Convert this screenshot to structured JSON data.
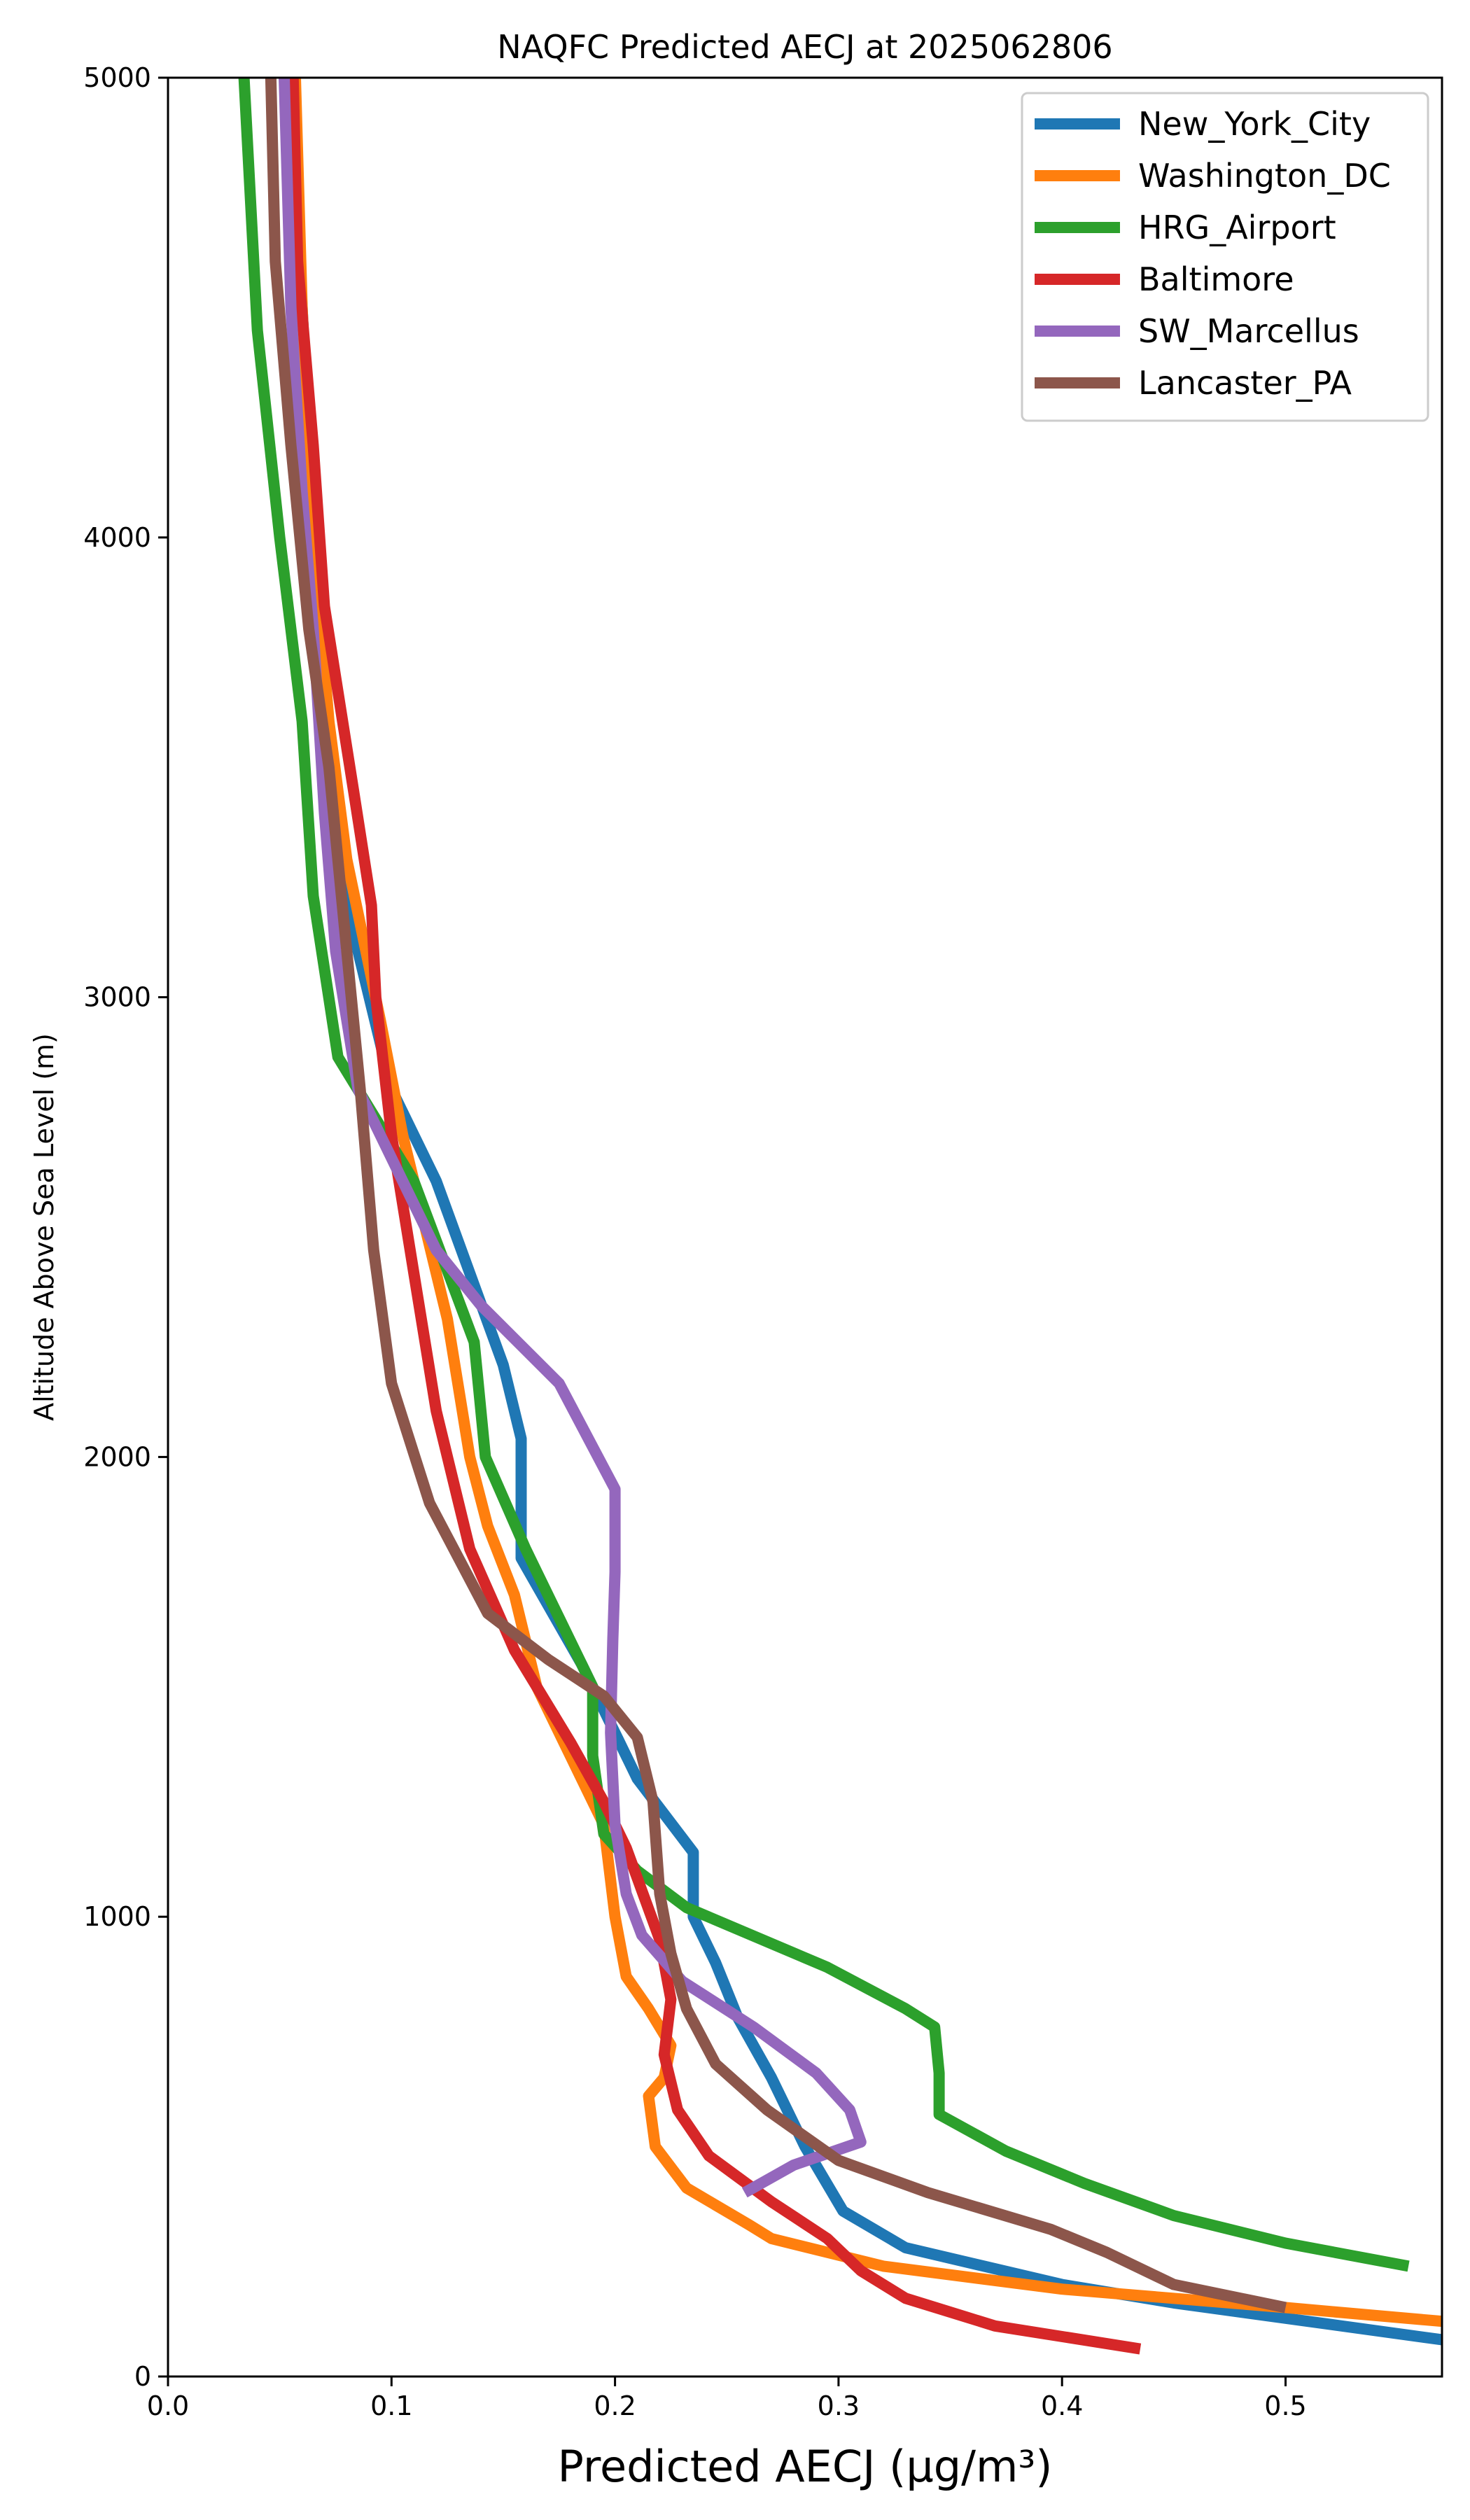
{
  "chart_data": {
    "type": "line",
    "title": "NAQFC Predicted AECJ at 2025062806",
    "xlabel": "Predicted AECJ (μg/m³)",
    "ylabel": "Altitude Above Sea Level (m)",
    "xlim": [
      0.0,
      0.57
    ],
    "ylim": [
      0,
      5000
    ],
    "xticks": [
      0.0,
      0.1,
      0.2,
      0.3,
      0.4,
      0.5
    ],
    "xtick_labels": [
      "0.0",
      "0.1",
      "0.2",
      "0.3",
      "0.4",
      "0.5"
    ],
    "yticks": [
      0,
      1000,
      2000,
      3000,
      4000,
      5000
    ],
    "ytick_labels": [
      "0",
      "1000",
      "2000",
      "3000",
      "4000",
      "5000"
    ],
    "grid": false,
    "legend_position": "top-right",
    "series": [
      {
        "name": "New_York_City",
        "color": "#1f77b4",
        "points": [
          [
            0.57,
            80
          ],
          [
            0.45,
            160
          ],
          [
            0.4,
            200
          ],
          [
            0.33,
            280
          ],
          [
            0.302,
            360
          ],
          [
            0.285,
            500
          ],
          [
            0.27,
            650
          ],
          [
            0.255,
            780
          ],
          [
            0.245,
            900
          ],
          [
            0.235,
            1000
          ],
          [
            0.235,
            1140
          ],
          [
            0.21,
            1300
          ],
          [
            0.185,
            1550
          ],
          [
            0.158,
            1780
          ],
          [
            0.158,
            2040
          ],
          [
            0.15,
            2200
          ],
          [
            0.135,
            2400
          ],
          [
            0.12,
            2600
          ],
          [
            0.1,
            2800
          ],
          [
            0.085,
            3100
          ],
          [
            0.072,
            3500
          ],
          [
            0.065,
            4000
          ],
          [
            0.06,
            4500
          ],
          [
            0.055,
            5000
          ]
        ]
      },
      {
        "name": "Washington_DC",
        "color": "#ff7f0e",
        "points": [
          [
            0.57,
            120
          ],
          [
            0.5,
            150
          ],
          [
            0.4,
            190
          ],
          [
            0.32,
            240
          ],
          [
            0.27,
            300
          ],
          [
            0.26,
            330
          ],
          [
            0.232,
            410
          ],
          [
            0.218,
            500
          ],
          [
            0.215,
            610
          ],
          [
            0.222,
            650
          ],
          [
            0.225,
            720
          ],
          [
            0.215,
            800
          ],
          [
            0.205,
            870
          ],
          [
            0.2,
            1000
          ],
          [
            0.195,
            1200
          ],
          [
            0.18,
            1350
          ],
          [
            0.165,
            1500
          ],
          [
            0.155,
            1700
          ],
          [
            0.143,
            1850
          ],
          [
            0.135,
            2000
          ],
          [
            0.125,
            2300
          ],
          [
            0.115,
            2500
          ],
          [
            0.105,
            2700
          ],
          [
            0.095,
            2950
          ],
          [
            0.08,
            3300
          ],
          [
            0.072,
            3600
          ],
          [
            0.065,
            4000
          ],
          [
            0.06,
            4500
          ],
          [
            0.057,
            5000
          ]
        ]
      },
      {
        "name": "HRG_Airport",
        "color": "#2ca02c",
        "points": [
          [
            0.555,
            240
          ],
          [
            0.5,
            290
          ],
          [
            0.45,
            350
          ],
          [
            0.41,
            420
          ],
          [
            0.375,
            490
          ],
          [
            0.345,
            570
          ],
          [
            0.345,
            660
          ],
          [
            0.343,
            760
          ],
          [
            0.33,
            800
          ],
          [
            0.295,
            890
          ],
          [
            0.232,
            1020
          ],
          [
            0.21,
            1100
          ],
          [
            0.195,
            1180
          ],
          [
            0.19,
            1350
          ],
          [
            0.19,
            1500
          ],
          [
            0.175,
            1650
          ],
          [
            0.16,
            1800
          ],
          [
            0.142,
            2000
          ],
          [
            0.137,
            2250
          ],
          [
            0.11,
            2600
          ],
          [
            0.076,
            2870
          ],
          [
            0.065,
            3220
          ],
          [
            0.06,
            3600
          ],
          [
            0.05,
            4000
          ],
          [
            0.04,
            4450
          ],
          [
            0.034,
            5000
          ]
        ]
      },
      {
        "name": "Baltimore",
        "color": "#d62728",
        "points": [
          [
            0.435,
            60
          ],
          [
            0.37,
            110
          ],
          [
            0.33,
            170
          ],
          [
            0.31,
            230
          ],
          [
            0.295,
            300
          ],
          [
            0.27,
            380
          ],
          [
            0.242,
            480
          ],
          [
            0.228,
            580
          ],
          [
            0.222,
            700
          ],
          [
            0.225,
            820
          ],
          [
            0.22,
            950
          ],
          [
            0.205,
            1150
          ],
          [
            0.195,
            1250
          ],
          [
            0.18,
            1380
          ],
          [
            0.155,
            1580
          ],
          [
            0.135,
            1800
          ],
          [
            0.12,
            2100
          ],
          [
            0.11,
            2400
          ],
          [
            0.1,
            2700
          ],
          [
            0.093,
            3000
          ],
          [
            0.091,
            3200
          ],
          [
            0.083,
            3450
          ],
          [
            0.07,
            3850
          ],
          [
            0.065,
            4200
          ],
          [
            0.058,
            4600
          ],
          [
            0.056,
            5000
          ]
        ]
      },
      {
        "name": "SW_Marcellus",
        "color": "#9467bd",
        "points": [
          [
            0.258,
            400
          ],
          [
            0.28,
            460
          ],
          [
            0.31,
            510
          ],
          [
            0.305,
            580
          ],
          [
            0.29,
            660
          ],
          [
            0.262,
            760
          ],
          [
            0.23,
            860
          ],
          [
            0.212,
            960
          ],
          [
            0.205,
            1050
          ],
          [
            0.2,
            1200
          ],
          [
            0.198,
            1400
          ],
          [
            0.199,
            1600
          ],
          [
            0.2,
            1750
          ],
          [
            0.2,
            1930
          ],
          [
            0.175,
            2160
          ],
          [
            0.14,
            2330
          ],
          [
            0.12,
            2450
          ],
          [
            0.1,
            2650
          ],
          [
            0.085,
            2800
          ],
          [
            0.075,
            3100
          ],
          [
            0.07,
            3400
          ],
          [
            0.065,
            3800
          ],
          [
            0.06,
            4100
          ],
          [
            0.055,
            4500
          ],
          [
            0.052,
            5000
          ]
        ]
      },
      {
        "name": "Lancaster_PA",
        "color": "#8c564b",
        "points": [
          [
            0.5,
            150
          ],
          [
            0.45,
            200
          ],
          [
            0.42,
            270
          ],
          [
            0.395,
            320
          ],
          [
            0.34,
            400
          ],
          [
            0.3,
            470
          ],
          [
            0.268,
            580
          ],
          [
            0.245,
            680
          ],
          [
            0.232,
            800
          ],
          [
            0.225,
            920
          ],
          [
            0.22,
            1050
          ],
          [
            0.217,
            1250
          ],
          [
            0.21,
            1390
          ],
          [
            0.195,
            1480
          ],
          [
            0.17,
            1560
          ],
          [
            0.143,
            1660
          ],
          [
            0.13,
            1780
          ],
          [
            0.117,
            1900
          ],
          [
            0.1,
            2160
          ],
          [
            0.092,
            2450
          ],
          [
            0.086,
            2800
          ],
          [
            0.08,
            3100
          ],
          [
            0.072,
            3500
          ],
          [
            0.063,
            3800
          ],
          [
            0.055,
            4200
          ],
          [
            0.048,
            4600
          ],
          [
            0.046,
            5000
          ]
        ]
      }
    ]
  }
}
